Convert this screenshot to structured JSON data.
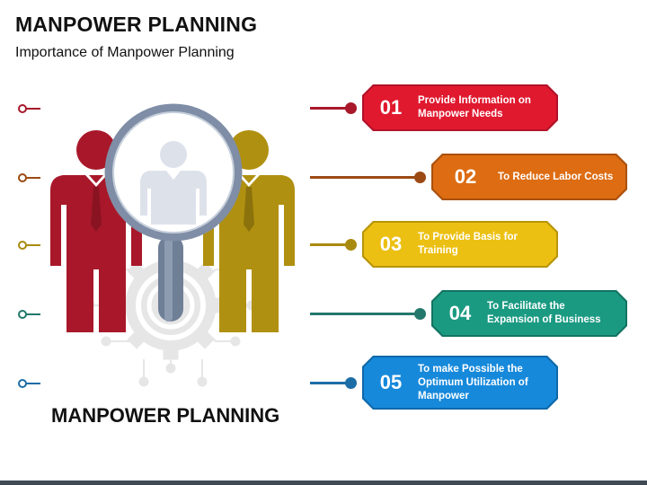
{
  "header": {
    "title": "MANPOWER PLANNING",
    "subtitle": "Importance of Manpower Planning"
  },
  "illustration": {
    "caption": "MANPOWER PLANNING",
    "icons": [
      "person-red-icon",
      "person-gold-icon",
      "person-gray-icon",
      "magnifier-icon",
      "gear-network-icon"
    ]
  },
  "items": [
    {
      "number": "01",
      "label": "Provide Information on Manpower Needs",
      "color": "#e0192f",
      "line_color": "#a8182a"
    },
    {
      "number": "02",
      "label": "To Reduce Labor Costs",
      "color": "#dd6c12",
      "line_color": "#9b4a14"
    },
    {
      "number": "03",
      "label": "To Provide Basis for Training",
      "color": "#ecc012",
      "line_color": "#a98a10"
    },
    {
      "number": "04",
      "label": "To Facilitate the Expansion of Business",
      "color": "#1b9a82",
      "line_color": "#23786b"
    },
    {
      "number": "05",
      "label": "To make Possible the Optimum Utilization of Manpower",
      "color": "#1689db",
      "line_color": "#1d6ea6"
    }
  ]
}
